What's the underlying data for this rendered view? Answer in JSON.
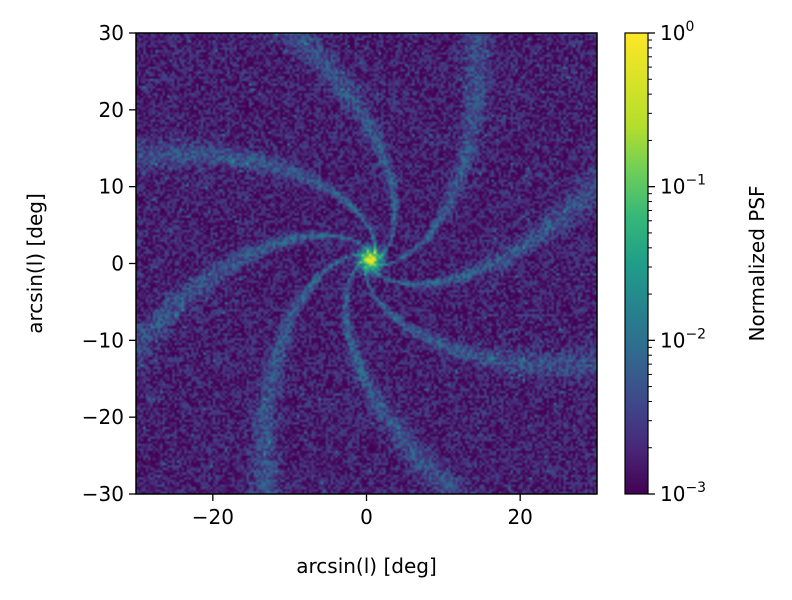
{
  "chart_data": {
    "type": "heatmap",
    "title": "",
    "xlabel": "arcsin(l) [deg]",
    "ylabel": "arcsin(l) [deg]",
    "xlim": [
      -30,
      30
    ],
    "ylim": [
      -30,
      30
    ],
    "x_ticks": [
      -20,
      0,
      20
    ],
    "x_tick_labels": [
      "−20",
      "0",
      "20"
    ],
    "y_ticks": [
      -30,
      -20,
      -10,
      0,
      10,
      20,
      30
    ],
    "y_tick_labels": [
      "−30",
      "−20",
      "−10",
      "0",
      "10",
      "20",
      "30"
    ],
    "colormap": "viridis",
    "peak": {
      "x": 0.5,
      "y": 0.5,
      "value": 1.0
    },
    "colorbar": {
      "label": "Normalized PSF",
      "scale": "log",
      "range": [
        0.001,
        1
      ],
      "ticks": [
        {
          "value": 1,
          "base": "10",
          "exp": "0"
        },
        {
          "value": 0.1,
          "base": "10",
          "exp": "−1"
        },
        {
          "value": 0.01,
          "base": "10",
          "exp": "−2"
        },
        {
          "value": 0.001,
          "base": "10",
          "exp": "−3"
        }
      ]
    },
    "grid": false
  }
}
